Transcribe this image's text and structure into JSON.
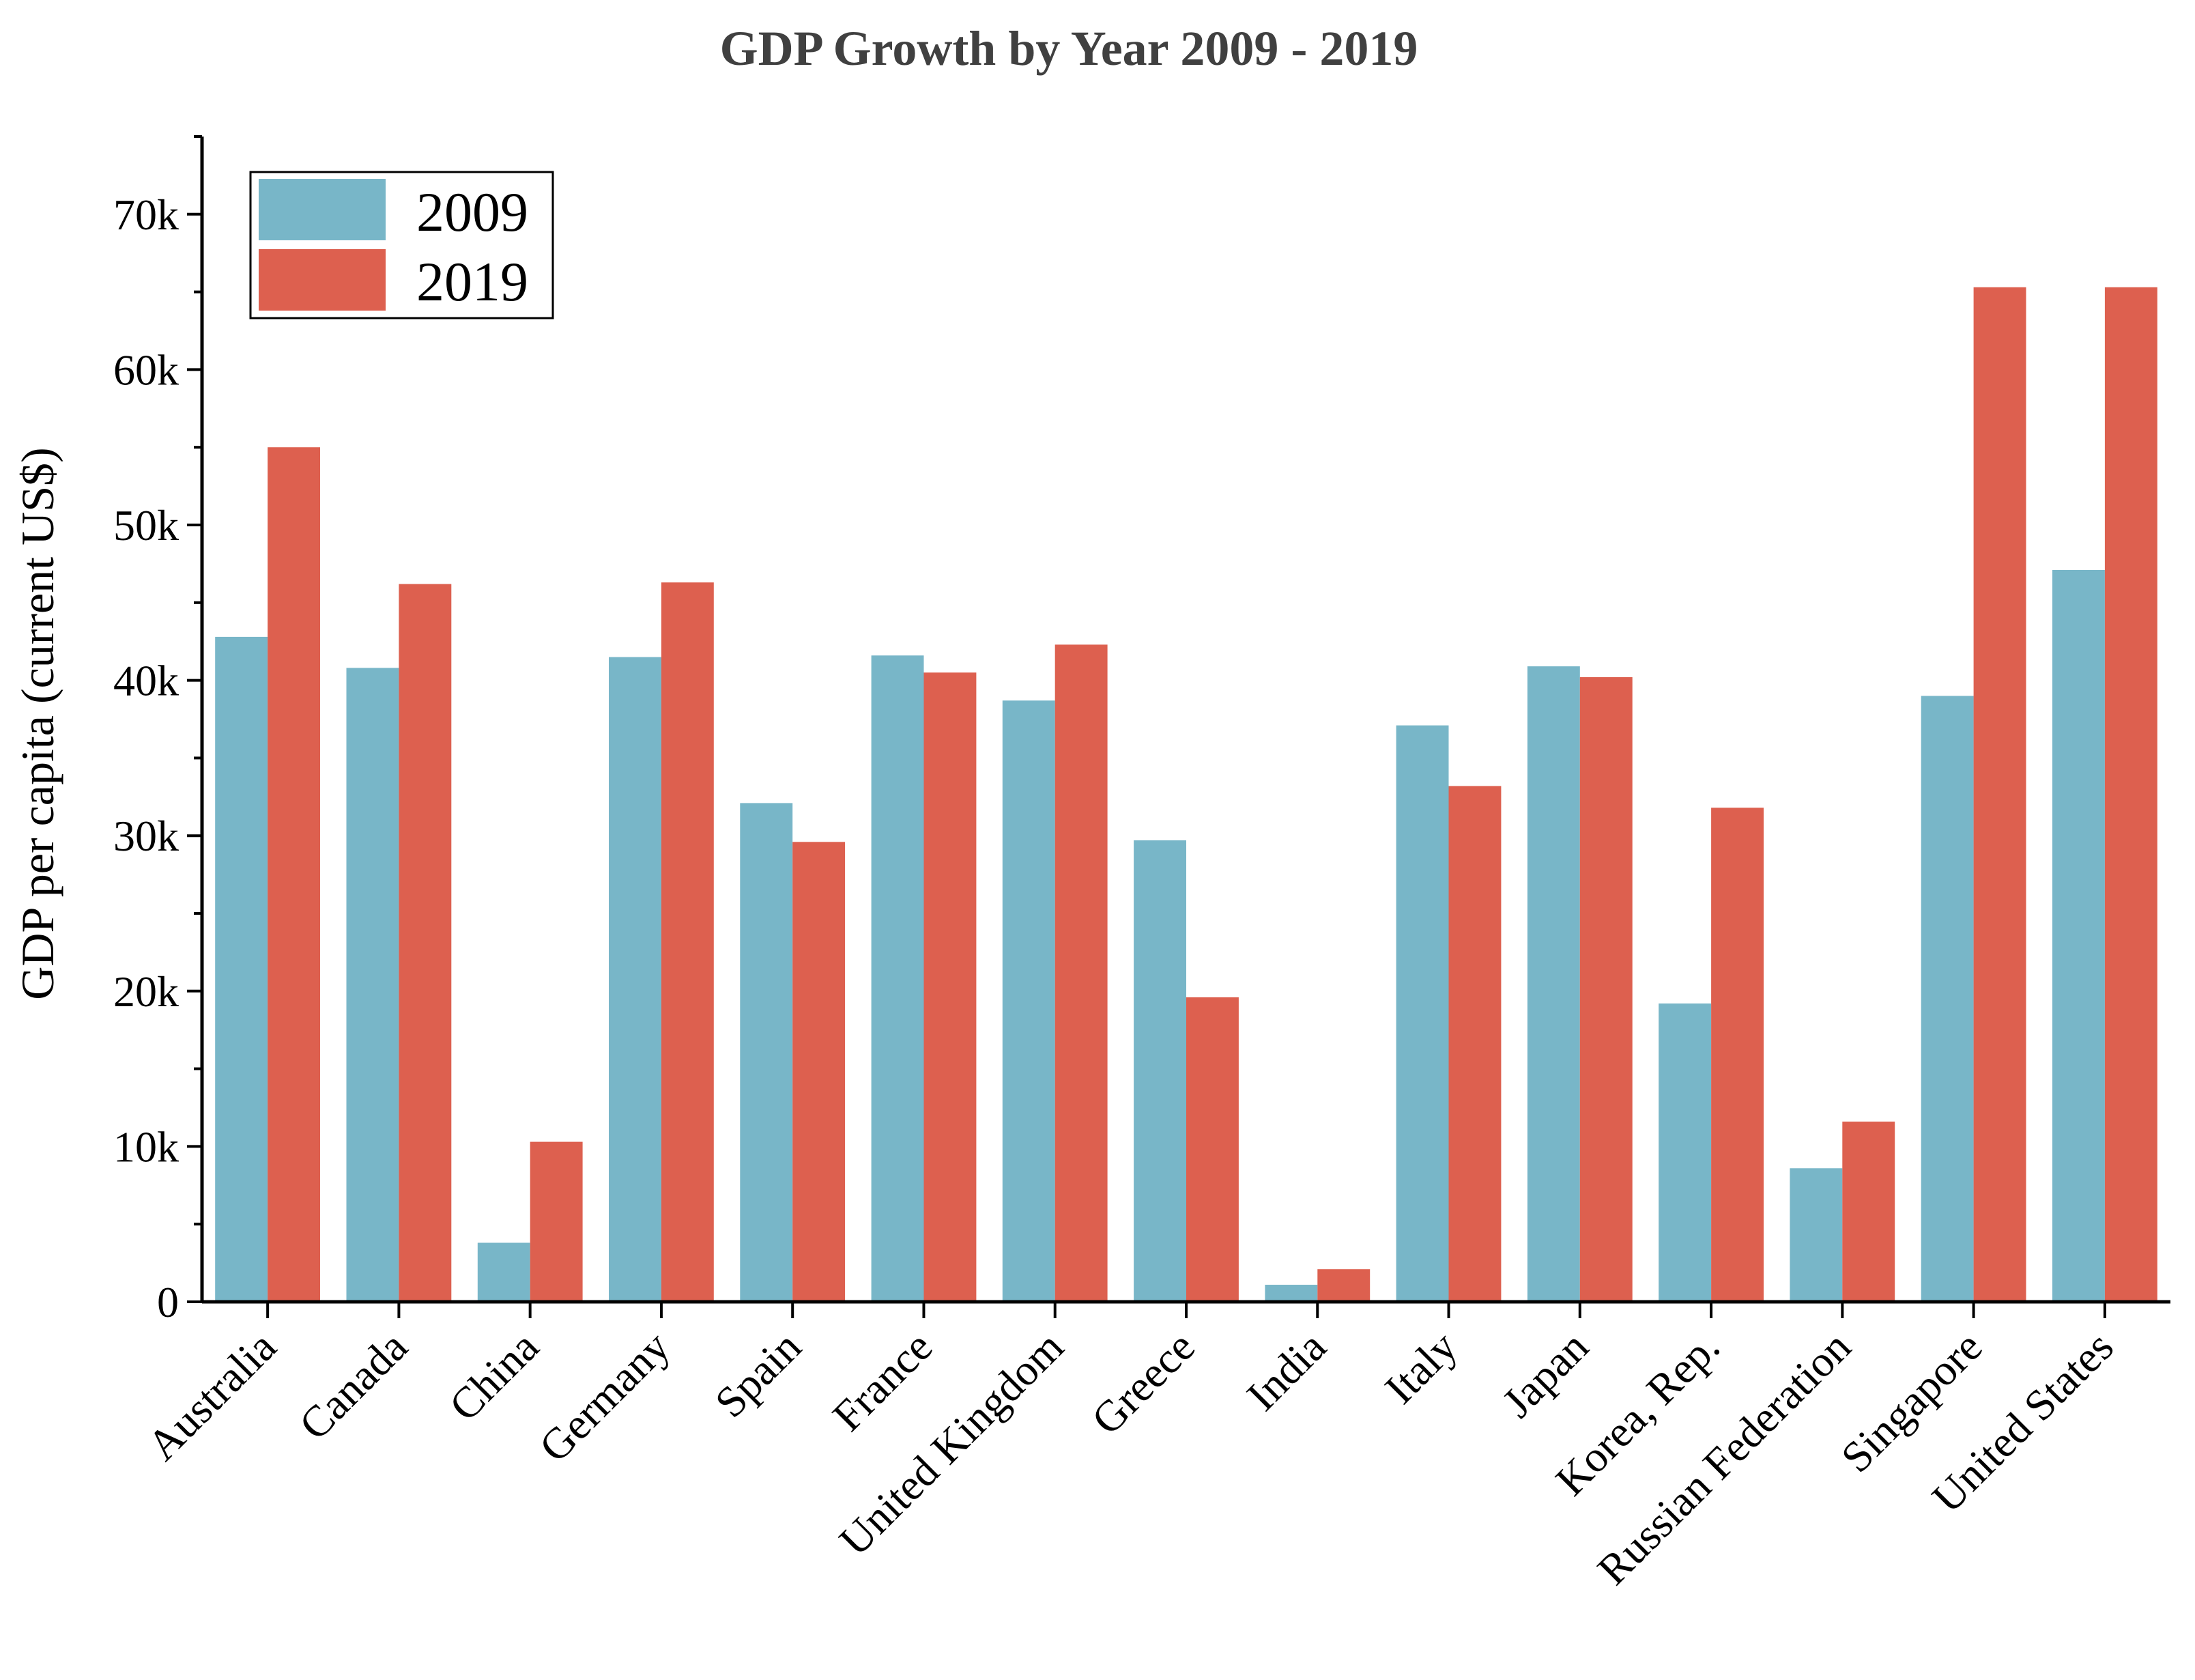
{
  "chart_data": {
    "type": "bar",
    "title": "GDP Growth by Year 2009 - 2019",
    "xlabel": "",
    "ylabel": "GDP per capita (current US$)",
    "ylim": [
      0,
      75000
    ],
    "yticks": [
      0,
      10000,
      20000,
      30000,
      40000,
      50000,
      60000,
      70000
    ],
    "ytick_labels": [
      "0",
      "10k",
      "20k",
      "30k",
      "40k",
      "50k",
      "60k",
      "70k"
    ],
    "categories": [
      "Australia",
      "Canada",
      "China",
      "Germany",
      "Spain",
      "France",
      "United Kingdom",
      "Greece",
      "India",
      "Italy",
      "Japan",
      "Korea, Rep.",
      "Russian Federation",
      "Singapore",
      "United States"
    ],
    "series": [
      {
        "name": "2009",
        "color": "#78b6c8",
        "values": [
          42800,
          40800,
          3800,
          41500,
          32100,
          41600,
          38700,
          29700,
          1100,
          37100,
          40900,
          19200,
          8600,
          39000,
          47100
        ]
      },
      {
        "name": "2019",
        "color": "#dd604f",
        "values": [
          55000,
          46200,
          10300,
          46300,
          29600,
          40500,
          42300,
          19600,
          2100,
          33200,
          40200,
          31800,
          11600,
          65300,
          65300
        ]
      }
    ],
    "grid": false,
    "legend_position": "top-left"
  }
}
